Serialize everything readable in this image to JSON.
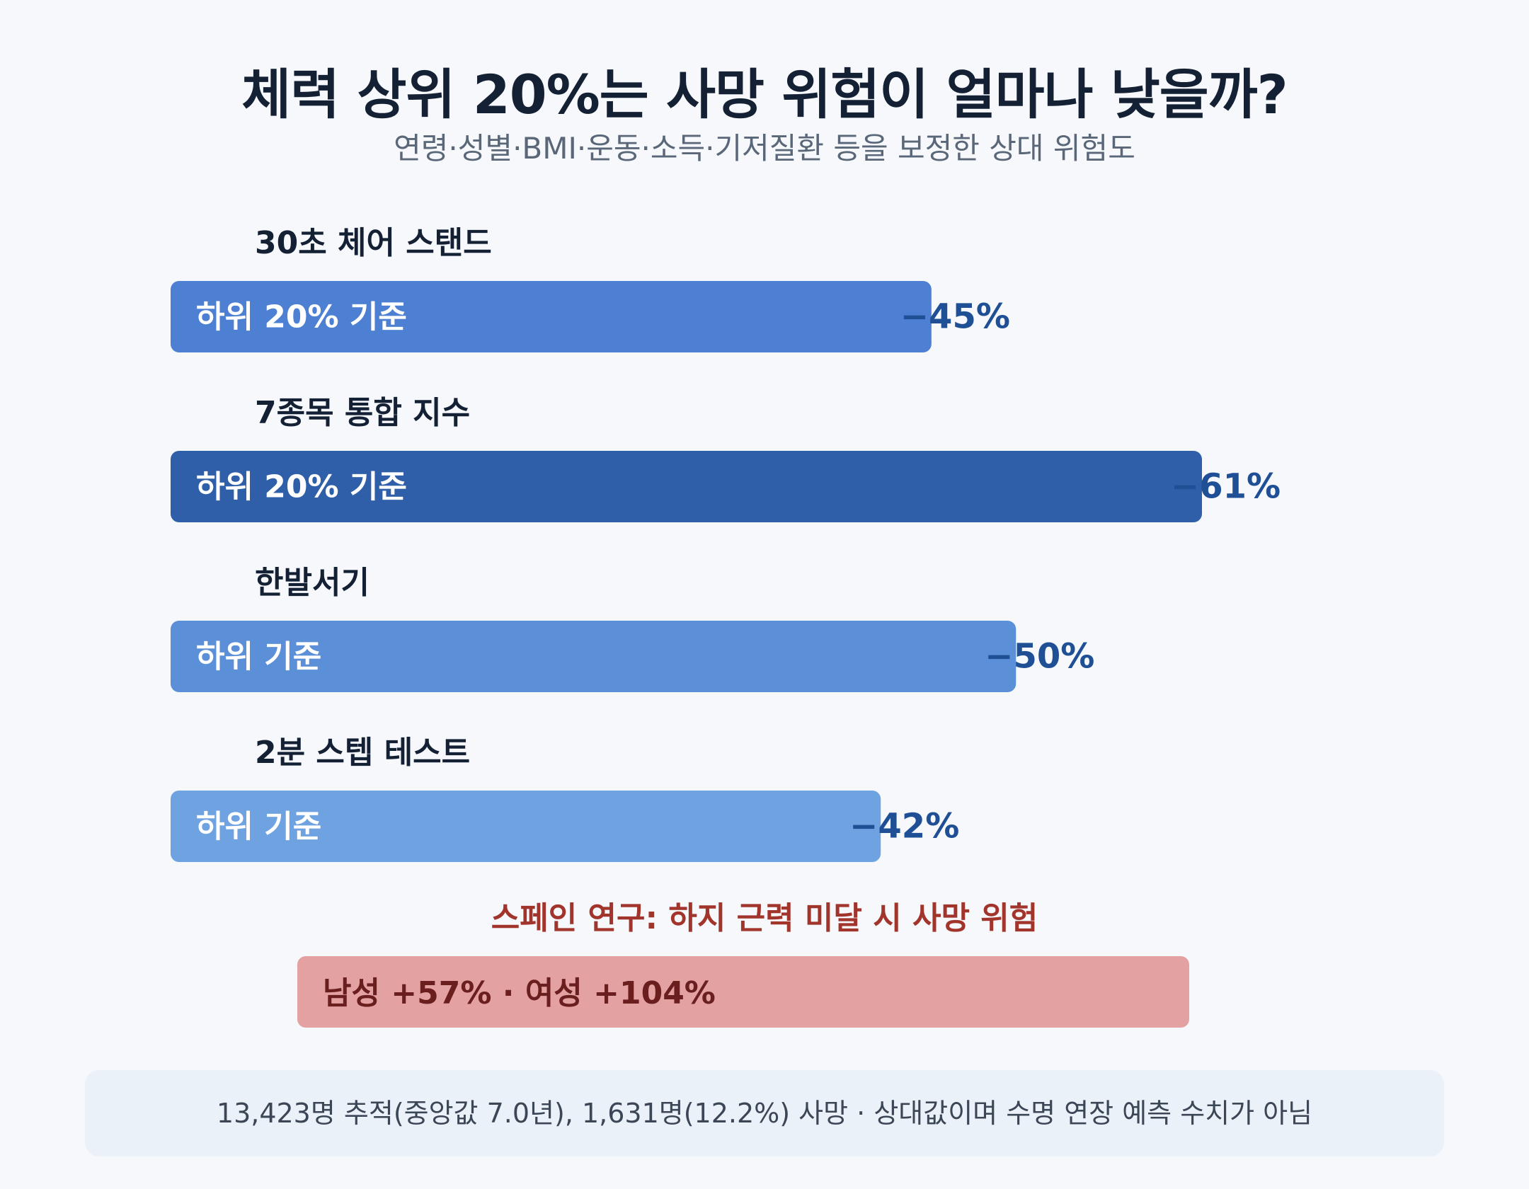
{
  "header": {
    "title": "체력 상위 20%는 사망 위험이 얼마나 낮을까?",
    "subtitle": "연령·성별·BMI·운동·소득·기저질환 등을 보정한 상대 위험도"
  },
  "chart_data": {
    "type": "bar",
    "orientation": "horizontal",
    "title": "체력 상위 20%는 사망 위험이 얼마나 낮을까?",
    "subtitle": "연령·성별·BMI·운동·소득·기저질환 등을 보정한 상대 위험도",
    "categories": [
      "30초 체어 스탠드",
      "7종목 통합 지수",
      "한발서기",
      "2분 스텝 테스트"
    ],
    "series": [
      {
        "values": [
          45,
          61,
          50,
          42
        ],
        "value_labels": [
          "−45%",
          "−61%",
          "−50%",
          "−42%"
        ],
        "bar_labels": [
          "하위 20% 기준",
          "하위 20% 기준",
          "하위 기준",
          "하위 기준"
        ],
        "colors": [
          "#4d7fd3",
          "#2f5fa8",
          "#5b8fd7",
          "#6ea2e1"
        ]
      }
    ],
    "xlim": [
      0,
      61
    ],
    "grid": false,
    "legend": "none",
    "value_label_color": "#1f4f94"
  },
  "spain": {
    "heading": "스페인 연구: 하지 근력 미달 시 사망 위험",
    "bar_text": "남성 +57% · 여성 +104%",
    "heading_color": "#a1342b",
    "bar_color": "#e3a1a1",
    "text_color": "#6a1e1e"
  },
  "footer": {
    "note": "13,423명 추적(중앙값 7.0년), 1,631명(12.2%) 사망 · 상대값이며 수명 연장 예측 수치가 아님"
  }
}
